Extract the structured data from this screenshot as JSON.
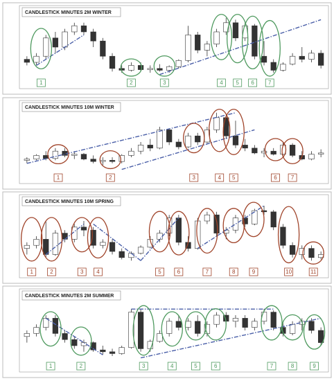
{
  "chart_data": [
    {
      "type": "candlestick",
      "title": "CANDLESTICK MINUTES 2M WINTER",
      "ylim": [
        0,
        10
      ],
      "color": "#4f9a5f",
      "trend_color": "#4a5fa8",
      "values": [
        [
          3,
          3.5,
          2,
          2.5
        ],
        [
          2.5,
          4,
          2,
          3.5
        ],
        [
          3.5,
          7,
          3,
          6.5
        ],
        [
          6.5,
          7.5,
          4,
          5
        ],
        [
          5,
          8,
          4.5,
          7.5
        ],
        [
          7.5,
          9,
          7,
          8.5
        ],
        [
          8.5,
          9,
          7,
          7.5
        ],
        [
          7.5,
          8,
          5,
          6
        ],
        [
          6,
          6.5,
          3,
          3.5
        ],
        [
          3.5,
          4,
          1,
          1.5
        ],
        [
          1.5,
          2,
          0.8,
          1.2
        ],
        [
          1.2,
          2.5,
          1,
          2
        ],
        [
          2,
          2.5,
          1,
          1.3
        ],
        [
          1.3,
          2,
          0.8,
          1.5
        ],
        [
          1.5,
          2.2,
          1,
          1.2
        ],
        [
          1.2,
          2,
          0.8,
          1.8
        ],
        [
          1.8,
          3,
          1.5,
          2.8
        ],
        [
          2.8,
          8.5,
          2.5,
          7
        ],
        [
          7,
          7.5,
          4,
          4.5
        ],
        [
          4.5,
          6,
          3.5,
          5.5
        ],
        [
          5.5,
          8,
          5,
          7.5
        ],
        [
          7.5,
          9.8,
          7,
          9
        ],
        [
          9,
          9.5,
          6,
          6.5
        ],
        [
          6.5,
          9,
          6,
          8.5
        ],
        [
          8.5,
          8.8,
          3,
          3.5
        ],
        [
          3.5,
          6,
          2,
          2.5
        ],
        [
          2.5,
          3,
          0.8,
          1.2
        ],
        [
          1.2,
          2.5,
          1,
          2.2
        ],
        [
          2.2,
          4,
          2,
          3.5
        ],
        [
          3.5,
          5,
          2.5,
          3
        ],
        [
          3,
          4.5,
          2.5,
          4
        ],
        [
          4,
          4.5,
          1.5,
          2
        ]
      ],
      "trendlines": [
        [
          1,
          2,
          6,
          7
        ],
        [
          14,
          0.5,
          31,
          9.5
        ]
      ],
      "annotations": [
        {
          "label": "1",
          "x": 1.5
        },
        {
          "label": "2",
          "x": 11
        },
        {
          "label": "3",
          "x": 14.5
        },
        {
          "label": "4",
          "x": 20.5
        },
        {
          "label": "5",
          "x": 22.2
        },
        {
          "label": "6",
          "x": 23.8
        },
        {
          "label": "7",
          "x": 25.6
        }
      ]
    },
    {
      "type": "candlestick",
      "title": "CANDLESTICK MINUTES 10M WINTER",
      "ylim": [
        0,
        10
      ],
      "color": "#a0442a",
      "trend_color": "#4a5fa8",
      "values": [
        [
          2,
          2.5,
          1.5,
          2.2
        ],
        [
          2.2,
          3,
          2,
          2.8
        ],
        [
          2.8,
          3.5,
          2,
          2.3
        ],
        [
          2.3,
          4,
          2,
          3.5
        ],
        [
          3.5,
          4,
          2.5,
          2.8
        ],
        [
          2.8,
          3.5,
          2.2,
          3
        ],
        [
          3,
          3.2,
          2,
          2.2
        ],
        [
          2.2,
          2.8,
          1.5,
          1.8
        ],
        [
          1.8,
          2.5,
          1.2,
          2
        ],
        [
          2,
          2.5,
          1.5,
          1.8
        ],
        [
          1.8,
          3,
          1.5,
          2.8
        ],
        [
          2.8,
          4,
          2.5,
          3.5
        ],
        [
          3.5,
          5,
          3,
          4.5
        ],
        [
          4.5,
          5.5,
          3.5,
          4
        ],
        [
          4,
          7.5,
          3.8,
          7
        ],
        [
          7,
          7.2,
          4.5,
          5
        ],
        [
          5,
          5.5,
          3.8,
          4.2
        ],
        [
          4.2,
          6.5,
          4,
          6
        ],
        [
          6,
          6.5,
          4.5,
          5
        ],
        [
          5,
          7.5,
          4.8,
          7
        ],
        [
          7,
          9.8,
          6.5,
          9
        ],
        [
          9,
          9.5,
          5.5,
          6
        ],
        [
          6,
          8.5,
          4,
          4.5
        ],
        [
          4.5,
          5.5,
          3.5,
          4
        ],
        [
          4,
          4.5,
          3,
          3.2
        ],
        [
          3.2,
          4,
          2.5,
          3.5
        ],
        [
          3.5,
          4,
          2.8,
          3
        ],
        [
          3,
          5,
          2.8,
          4.5
        ],
        [
          4.5,
          4.8,
          2.5,
          2.8
        ],
        [
          2.8,
          3.5,
          2,
          2.2
        ],
        [
          2.2,
          3.5,
          2,
          3
        ],
        [
          3,
          3.8,
          2.5,
          3.2
        ]
      ],
      "trendlines": [
        [
          0,
          1.5,
          22,
          9.8
        ],
        [
          10,
          0.5,
          24,
          7
        ]
      ],
      "annotations": [
        {
          "label": "1",
          "x": 3.3
        },
        {
          "label": "2",
          "x": 8.8
        },
        {
          "label": "3",
          "x": 17.6
        },
        {
          "label": "4",
          "x": 20.3
        },
        {
          "label": "5",
          "x": 21.8
        },
        {
          "label": "6",
          "x": 26.2
        },
        {
          "label": "7",
          "x": 28
        }
      ]
    },
    {
      "type": "candlestick",
      "title": "CANDLESTICK MINUTES 10M SPRING",
      "ylim": [
        0,
        10
      ],
      "color": "#a0442a",
      "trend_color": "#4a5fa8",
      "values": [
        [
          3,
          4,
          2,
          3.5
        ],
        [
          3.5,
          5,
          3,
          4.5
        ],
        [
          4.5,
          7.5,
          1.5,
          2
        ],
        [
          2,
          6,
          1.8,
          5.5
        ],
        [
          5.5,
          6,
          4,
          4.5
        ],
        [
          4.5,
          7,
          4,
          6.5
        ],
        [
          6.5,
          7.5,
          5,
          6
        ],
        [
          6,
          6.5,
          3,
          3.5
        ],
        [
          3.5,
          4.5,
          3,
          4
        ],
        [
          4,
          4.5,
          2,
          2.5
        ],
        [
          2.5,
          3,
          1.2,
          1.5
        ],
        [
          1.5,
          2.5,
          1,
          2.2
        ],
        [
          2.2,
          3.5,
          2,
          3.2
        ],
        [
          3.2,
          5,
          3,
          4.5
        ],
        [
          4.5,
          6,
          4,
          5.5
        ],
        [
          5.5,
          8.5,
          5,
          8
        ],
        [
          8,
          8.5,
          3.5,
          4
        ],
        [
          4,
          5,
          2.5,
          3
        ],
        [
          3,
          8,
          2.8,
          7.5
        ],
        [
          7.5,
          9,
          7,
          8.5
        ],
        [
          8.5,
          9,
          5,
          5.5
        ],
        [
          5.5,
          6.5,
          4.5,
          6
        ],
        [
          6,
          8.5,
          5.5,
          8
        ],
        [
          8,
          8.5,
          6.5,
          7
        ],
        [
          7,
          9.5,
          6.8,
          9.2
        ],
        [
          9.2,
          10,
          8.5,
          9
        ],
        [
          9,
          9.3,
          6,
          6.5
        ],
        [
          6.5,
          7,
          3,
          3.5
        ],
        [
          3.5,
          4,
          1.5,
          2
        ],
        [
          2,
          3.5,
          1.2,
          3
        ],
        [
          3,
          3.5,
          1,
          1.5
        ],
        [
          1.5,
          2.5,
          1.2,
          2
        ]
      ],
      "trendlines": [
        [
          2,
          2,
          6,
          7
        ],
        [
          7,
          7,
          12,
          1
        ],
        [
          12,
          1,
          16,
          8
        ],
        [
          18,
          3,
          25,
          10
        ]
      ],
      "annotations": [
        {
          "label": "1",
          "x": 0.5
        },
        {
          "label": "2",
          "x": 2.6
        },
        {
          "label": "3",
          "x": 5.8
        },
        {
          "label": "4",
          "x": 7.5
        },
        {
          "label": "5",
          "x": 14
        },
        {
          "label": "6",
          "x": 16
        },
        {
          "label": "7",
          "x": 19
        },
        {
          "label": "8",
          "x": 21.8
        },
        {
          "label": "9",
          "x": 23.9
        },
        {
          "label": "10",
          "x": 27.6
        },
        {
          "label": "11",
          "x": 30.2
        }
      ]
    },
    {
      "type": "candlestick",
      "title": "CANDLESTICK MINUTES 2M SUMMER",
      "ylim": [
        0,
        10
      ],
      "color": "#4f9a5f",
      "trend_color": "#4a5fa8",
      "values": [
        [
          4,
          5,
          3,
          4.5
        ],
        [
          4.5,
          6,
          4,
          5.5
        ],
        [
          5.5,
          7.5,
          5,
          7
        ],
        [
          7,
          7.5,
          4,
          4.5
        ],
        [
          4.5,
          5,
          3,
          3.5
        ],
        [
          3.5,
          4,
          2,
          2.5
        ],
        [
          2.5,
          3.5,
          1.5,
          3
        ],
        [
          3,
          3.2,
          1.5,
          1.8
        ],
        [
          1.8,
          2.5,
          1,
          1.5
        ],
        [
          1.5,
          2,
          0.8,
          1.2
        ],
        [
          1.2,
          2.5,
          1,
          2.2
        ],
        [
          2.2,
          8.5,
          2,
          8
        ],
        [
          8,
          8.5,
          1.5,
          2
        ],
        [
          2,
          3.5,
          1.5,
          3.2
        ],
        [
          3.2,
          5,
          3,
          4.5
        ],
        [
          4.5,
          7,
          4,
          6.5
        ],
        [
          6.5,
          7.5,
          5,
          5.5
        ],
        [
          5.5,
          7,
          5,
          6.5
        ],
        [
          6.5,
          7.5,
          4,
          4.5
        ],
        [
          4.5,
          6.5,
          4,
          6
        ],
        [
          6,
          8,
          5.5,
          7.5
        ],
        [
          7.5,
          8,
          6,
          6.5
        ],
        [
          6.5,
          7.5,
          5.5,
          7
        ],
        [
          7,
          7.5,
          5,
          5.5
        ],
        [
          5.5,
          7,
          5,
          6.5
        ],
        [
          6.5,
          8.5,
          6,
          8
        ],
        [
          8,
          8.3,
          5,
          5.5
        ],
        [
          5.5,
          6.5,
          4,
          4.5
        ],
        [
          4.5,
          6.5,
          4.2,
          6
        ],
        [
          6,
          7,
          5,
          6.5
        ],
        [
          6.5,
          7,
          4.5,
          5
        ],
        [
          5,
          5.5,
          2.5,
          3
        ]
      ],
      "trendlines": [
        [
          2,
          7,
          8,
          1
        ],
        [
          11,
          8.5,
          26,
          8.5
        ],
        [
          12,
          0.5,
          31,
          7
        ]
      ],
      "annotations": [
        {
          "label": "1",
          "x": 2.5
        },
        {
          "label": "2",
          "x": 5.7
        },
        {
          "label": "3",
          "x": 12.3
        },
        {
          "label": "4",
          "x": 15.3
        },
        {
          "label": "5",
          "x": 17.8
        },
        {
          "label": "6",
          "x": 19.9
        },
        {
          "label": "7",
          "x": 25.8
        },
        {
          "label": "8",
          "x": 28
        },
        {
          "label": "9",
          "x": 30.3
        }
      ]
    }
  ]
}
